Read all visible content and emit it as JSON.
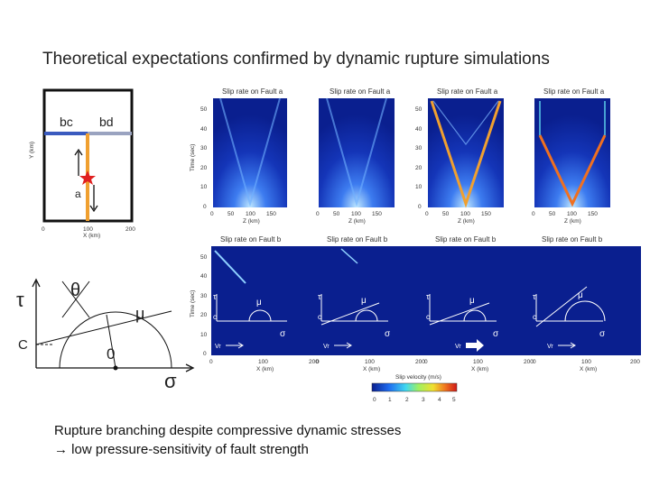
{
  "slide": {
    "title": "Theoretical expectations confirmed by dynamic rupture simulations",
    "caption_line1": "Rupture branching despite compressive dynamic stresses",
    "caption_line2": "low pressure-sensitivity of fault strength"
  },
  "geometry_panel": {
    "label_bc": "bc",
    "label_bd": "bd",
    "label_a": "a",
    "x_ticks": [
      "0",
      "100",
      "200"
    ],
    "x_label": "X (km)",
    "y_label": "Y (km)"
  },
  "mohr_panel": {
    "tau": "τ",
    "sigma": "σ",
    "theta": "θ",
    "mu": "μ",
    "c": "C",
    "zero": "0"
  },
  "top_row": {
    "panel_title": "Slip rate on Fault a",
    "y_label": "Time (sec)",
    "x_label": "Z (km)",
    "y_ticks": [
      "50",
      "40",
      "30",
      "20",
      "10",
      "0"
    ],
    "x_ticks": [
      "0",
      "50",
      "100",
      "150"
    ]
  },
  "bottom_row": {
    "panel_title": "Slip rate on Fault b",
    "y_label": "Time (sec)",
    "x_label": "X (km)",
    "y_ticks": [
      "50",
      "40",
      "30",
      "20",
      "10",
      "0"
    ],
    "x_ticks": [
      "0",
      "100",
      "200"
    ],
    "inset_tau": "τ",
    "inset_sigma": "σ",
    "inset_mu": "μ",
    "inset_c": "c",
    "inset_vr": "Vr"
  },
  "colorbar": {
    "label": "Slip velocity (m/s)",
    "ticks": [
      "0",
      "1",
      "2",
      "3",
      "4",
      "5"
    ]
  },
  "colors": {
    "field": "#0a1f8f",
    "branch": "#4b6fd6",
    "fault_a": "#f0a030",
    "star": "#e02020"
  }
}
